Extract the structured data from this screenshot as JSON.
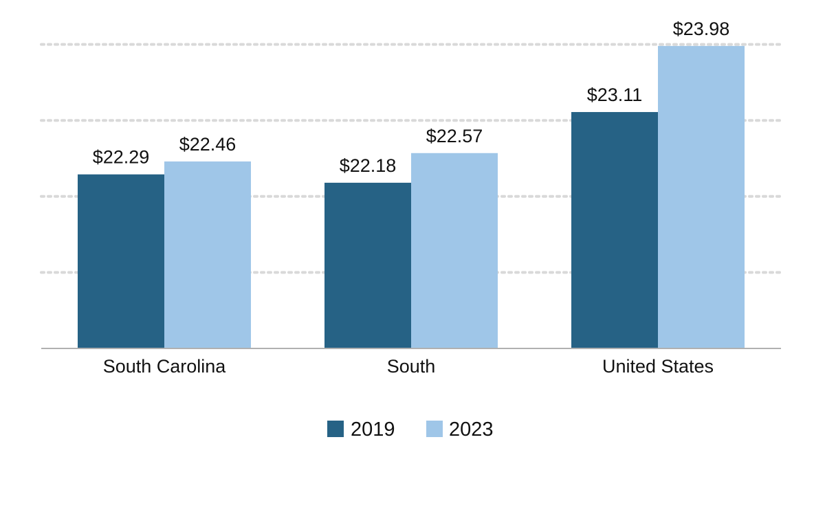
{
  "chart_data": {
    "type": "bar",
    "categories": [
      "South Carolina",
      "South",
      "United States"
    ],
    "series": [
      {
        "name": "2019",
        "values": [
          22.29,
          22.18,
          23.11
        ],
        "labels": [
          "$22.29",
          "$22.18",
          "$23.11"
        ],
        "color": "#266285"
      },
      {
        "name": "2023",
        "values": [
          22.46,
          22.57,
          23.98
        ],
        "labels": [
          "$22.46",
          "$22.57",
          "$23.98"
        ],
        "color": "#9fc6e8"
      }
    ],
    "ylim": [
      20.0,
      24.0
    ],
    "gridlines": [
      20.0,
      21.0,
      22.0,
      23.0,
      24.0
    ],
    "grid": true,
    "legend_position": "bottom-center",
    "axis_color": "#b0b0b0",
    "grid_color": "#d9d9d9"
  }
}
